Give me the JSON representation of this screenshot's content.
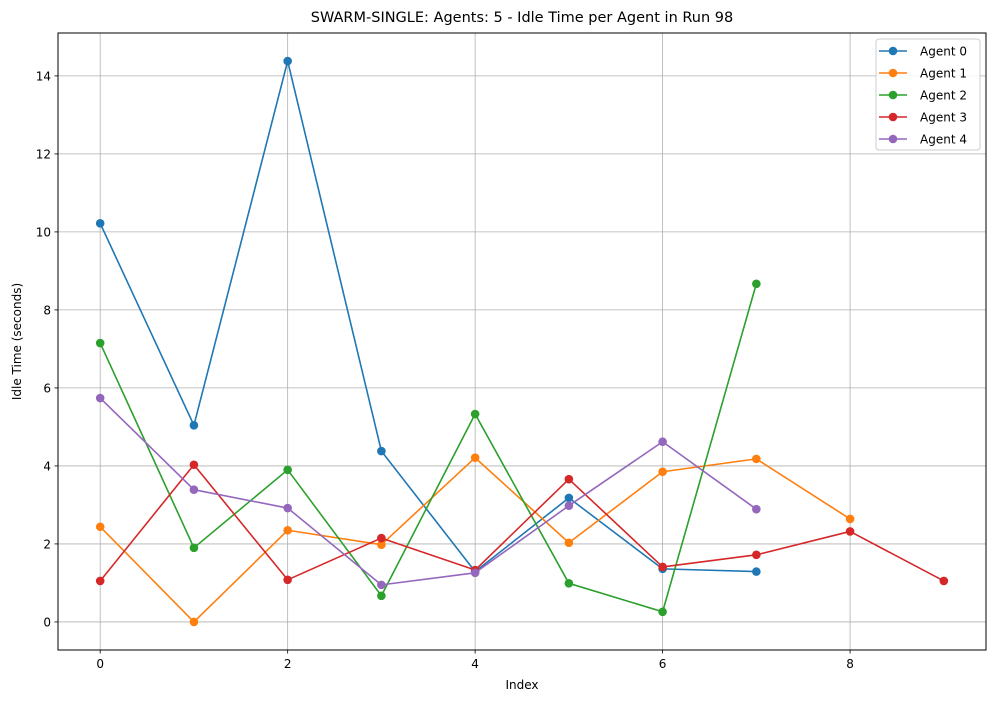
{
  "chart_data": {
    "type": "line",
    "title": "SWARM-SINGLE: Agents: 5 - Idle Time per Agent in Run 98",
    "xlabel": "Index",
    "ylabel": "Idle Time (seconds)",
    "xlim": [
      -0.45,
      9.45
    ],
    "ylim": [
      -0.72,
      15.1
    ],
    "xticks": [
      0,
      2,
      4,
      6,
      8
    ],
    "yticks": [
      0,
      2,
      4,
      6,
      8,
      10,
      12,
      14
    ],
    "grid": true,
    "legend_position": "top-right",
    "series": [
      {
        "name": "Agent 0",
        "color": "#1f77b4",
        "x": [
          0,
          1,
          2,
          3,
          4,
          5,
          6,
          7
        ],
        "values": [
          10.22,
          5.04,
          14.38,
          4.38,
          1.29,
          3.18,
          1.36,
          1.29
        ]
      },
      {
        "name": "Agent 1",
        "color": "#ff7f0e",
        "x": [
          0,
          1,
          2,
          3,
          4,
          5,
          6,
          7,
          8
        ],
        "values": [
          2.44,
          0.0,
          2.35,
          1.98,
          4.21,
          2.03,
          3.85,
          4.18,
          2.64
        ]
      },
      {
        "name": "Agent 2",
        "color": "#2ca02c",
        "x": [
          0,
          1,
          2,
          3,
          4,
          5,
          6,
          7
        ],
        "values": [
          7.15,
          1.9,
          3.9,
          0.67,
          5.33,
          0.99,
          0.26,
          8.67
        ]
      },
      {
        "name": "Agent 3",
        "color": "#d62728",
        "x": [
          0,
          1,
          2,
          3,
          4,
          5,
          6,
          7,
          8,
          9
        ],
        "values": [
          1.05,
          4.03,
          1.08,
          2.15,
          1.33,
          3.66,
          1.41,
          1.72,
          2.32,
          1.05
        ]
      },
      {
        "name": "Agent 4",
        "color": "#9467bd",
        "x": [
          0,
          1,
          2,
          3,
          4,
          5,
          6,
          7
        ],
        "values": [
          5.74,
          3.39,
          2.92,
          0.95,
          1.26,
          2.98,
          4.62,
          2.89
        ]
      }
    ]
  }
}
